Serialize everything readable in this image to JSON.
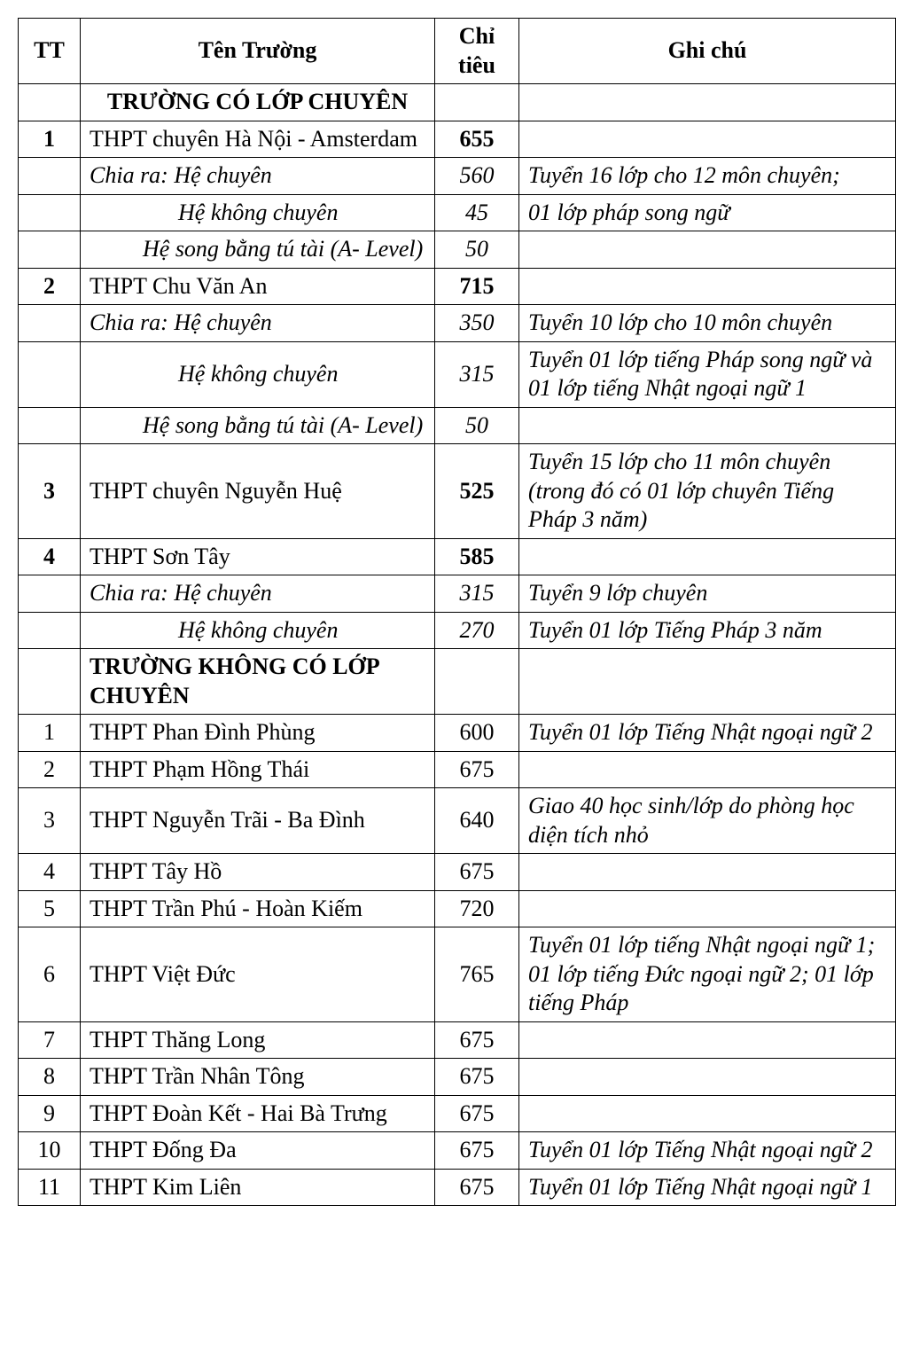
{
  "columns": {
    "tt": "TT",
    "name": "Tên Trường",
    "ct": "Chỉ tiêu",
    "note": "Ghi chú"
  },
  "rows": [
    {
      "tt": "",
      "name": "TRƯỜNG CÓ LỚP CHUYÊN",
      "ct": "",
      "note": "",
      "ttBold": false,
      "nameBold": true,
      "ctBold": false,
      "italic": false,
      "section": true,
      "indent": 0
    },
    {
      "tt": "1",
      "name": "THPT chuyên Hà Nội - Amsterdam",
      "ct": "655",
      "note": "",
      "ttBold": true,
      "nameBold": false,
      "ctBold": true,
      "italic": false,
      "section": false,
      "indent": 0
    },
    {
      "tt": "",
      "name": "Chia ra:  Hệ chuyên",
      "ct": "560",
      "note": "Tuyển 16 lớp cho 12 môn chuyên;",
      "ttBold": false,
      "nameBold": false,
      "ctBold": false,
      "italic": true,
      "section": false,
      "indent": 0
    },
    {
      "tt": "",
      "name": "Hệ không chuyên",
      "ct": "45",
      "note": " 01 lớp pháp song ngữ",
      "ttBold": false,
      "nameBold": false,
      "ctBold": false,
      "italic": true,
      "section": false,
      "indent": 2
    },
    {
      "tt": "",
      "name": "Hệ song bằng tú tài (A- Level)",
      "ct": "50",
      "note": "",
      "ttBold": false,
      "nameBold": false,
      "ctBold": false,
      "italic": true,
      "section": false,
      "indent": 1
    },
    {
      "tt": "2",
      "name": "THPT Chu Văn An",
      "ct": "715",
      "note": "",
      "ttBold": true,
      "nameBold": false,
      "ctBold": true,
      "italic": false,
      "section": false,
      "indent": 0
    },
    {
      "tt": "",
      "name": "Chia ra:  Hệ chuyên",
      "ct": "350",
      "note": "Tuyển 10 lớp cho 10 môn chuyên",
      "ttBold": false,
      "nameBold": false,
      "ctBold": false,
      "italic": true,
      "section": false,
      "indent": 0
    },
    {
      "tt": "",
      "name": "Hệ không chuyên",
      "ct": "315",
      "note": "Tuyển 01 lớp tiếng Pháp song ngữ và 01 lớp tiếng Nhật ngoại ngữ 1",
      "ttBold": false,
      "nameBold": false,
      "ctBold": false,
      "italic": true,
      "section": false,
      "indent": 2
    },
    {
      "tt": "",
      "name": "Hệ song bằng tú tài (A- Level)",
      "ct": "50",
      "note": "",
      "ttBold": false,
      "nameBold": false,
      "ctBold": false,
      "italic": true,
      "section": false,
      "indent": 1
    },
    {
      "tt": "3",
      "name": "THPT chuyên Nguyễn Huệ",
      "ct": "525",
      "note": "Tuyển 15 lớp cho 11 môn chuyên (trong đó có 01 lớp chuyên Tiếng Pháp 3 năm)",
      "ttBold": true,
      "nameBold": false,
      "ctBold": true,
      "italic": false,
      "noteItalic": true,
      "section": false,
      "indent": 0
    },
    {
      "tt": "4",
      "name": "THPT Sơn Tây",
      "ct": "585",
      "note": "",
      "ttBold": true,
      "nameBold": false,
      "ctBold": true,
      "italic": false,
      "section": false,
      "indent": 0
    },
    {
      "tt": "",
      "name": "Chia ra:  Hệ chuyên",
      "ct": "315",
      "note": "Tuyển 9 lớp chuyên",
      "ttBold": false,
      "nameBold": false,
      "ctBold": false,
      "italic": true,
      "section": false,
      "indent": 0
    },
    {
      "tt": "",
      "name": "Hệ không chuyên",
      "ct": "270",
      "note": "Tuyển 01 lớp Tiếng Pháp 3 năm",
      "ttBold": false,
      "nameBold": false,
      "ctBold": false,
      "italic": true,
      "section": false,
      "indent": 2
    },
    {
      "tt": "",
      "name": "TRƯỜNG KHÔNG CÓ LỚP CHUYÊN",
      "ct": "",
      "note": "",
      "ttBold": false,
      "nameBold": true,
      "ctBold": false,
      "italic": false,
      "section": false,
      "sectionLeft": true,
      "indent": 0
    },
    {
      "tt": "1",
      "name": "THPT Phan Đình Phùng",
      "ct": "600",
      "note": "Tuyển 01 lớp Tiếng Nhật ngoại ngữ 2",
      "ttBold": false,
      "nameBold": false,
      "ctBold": false,
      "italic": false,
      "noteItalic": true,
      "section": false,
      "indent": 0
    },
    {
      "tt": "2",
      "name": "THPT Phạm Hồng Thái",
      "ct": "675",
      "note": "",
      "ttBold": false,
      "nameBold": false,
      "ctBold": false,
      "italic": false,
      "section": false,
      "indent": 0
    },
    {
      "tt": "3",
      "name": "THPT Nguyễn Trãi - Ba Đình",
      "ct": "640",
      "note": "Giao 40 học sinh/lớp do phòng học diện tích nhỏ",
      "ttBold": false,
      "nameBold": false,
      "ctBold": false,
      "italic": false,
      "noteItalic": true,
      "section": false,
      "indent": 0
    },
    {
      "tt": "4",
      "name": "THPT Tây Hồ",
      "ct": "675",
      "note": "",
      "ttBold": false,
      "nameBold": false,
      "ctBold": false,
      "italic": false,
      "section": false,
      "indent": 0
    },
    {
      "tt": "5",
      "name": "THPT Trần Phú - Hoàn Kiếm",
      "ct": "720",
      "note": "",
      "ttBold": false,
      "nameBold": false,
      "ctBold": false,
      "italic": false,
      "section": false,
      "indent": 0
    },
    {
      "tt": "6",
      "name": "THPT Việt Đức",
      "ct": "765",
      "note": "Tuyển 01 lớp tiếng Nhật ngoại ngữ 1;  01 lớp tiếng Đức ngoại ngữ 2; 01 lớp tiếng Pháp",
      "ttBold": false,
      "nameBold": false,
      "ctBold": false,
      "italic": false,
      "noteItalic": true,
      "section": false,
      "indent": 0
    },
    {
      "tt": "7",
      "name": "THPT Thăng Long",
      "ct": "675",
      "note": "",
      "ttBold": false,
      "nameBold": false,
      "ctBold": false,
      "italic": false,
      "section": false,
      "indent": 0
    },
    {
      "tt": "8",
      "name": "THPT Trần Nhân Tông",
      "ct": "675",
      "note": "",
      "ttBold": false,
      "nameBold": false,
      "ctBold": false,
      "italic": false,
      "section": false,
      "indent": 0
    },
    {
      "tt": "9",
      "name": "THPT Đoàn  Kết - Hai Bà Trưng",
      "ct": "675",
      "note": "",
      "ttBold": false,
      "nameBold": false,
      "ctBold": false,
      "italic": false,
      "section": false,
      "indent": 0
    },
    {
      "tt": "10",
      "name": "THPT Đống Đa",
      "ct": "675",
      "note": "Tuyển 01 lớp Tiếng Nhật ngoại ngữ 2",
      "ttBold": false,
      "nameBold": false,
      "ctBold": false,
      "italic": false,
      "noteItalic": true,
      "section": false,
      "indent": 0
    },
    {
      "tt": "11",
      "name": "THPT Kim Liên",
      "ct": "675",
      "note": "Tuyển 01 lớp Tiếng Nhật ngoại ngữ 1",
      "ttBold": false,
      "nameBold": false,
      "ctBold": false,
      "italic": false,
      "noteItalic": true,
      "section": false,
      "indent": 0
    }
  ]
}
